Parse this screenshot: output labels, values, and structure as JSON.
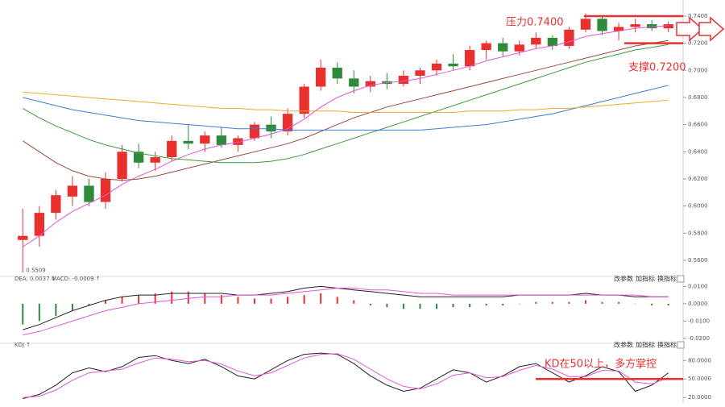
{
  "toolbar": [
    "改参数",
    "加指标",
    "换指标"
  ],
  "chart_data": [
    {
      "type": "candlestick",
      "open": [
        0.575,
        0.578,
        0.595,
        0.607,
        0.615,
        0.603,
        0.62,
        0.64,
        0.632,
        0.636,
        0.648,
        0.646,
        0.652,
        0.645,
        0.65,
        0.66,
        0.655,
        0.668,
        0.688,
        0.702,
        0.694,
        0.688,
        0.692,
        0.69,
        0.696,
        0.7,
        0.705,
        0.703,
        0.715,
        0.72,
        0.714,
        0.719,
        0.724,
        0.718,
        0.73,
        0.738,
        0.729,
        0.732,
        0.734,
        0.731
      ],
      "high": [
        0.598,
        0.6,
        0.612,
        0.622,
        0.62,
        0.625,
        0.645,
        0.646,
        0.64,
        0.652,
        0.66,
        0.655,
        0.658,
        0.652,
        0.662,
        0.666,
        0.672,
        0.69,
        0.708,
        0.706,
        0.7,
        0.696,
        0.698,
        0.7,
        0.702,
        0.708,
        0.712,
        0.718,
        0.722,
        0.724,
        0.722,
        0.728,
        0.726,
        0.732,
        0.742,
        0.74,
        0.735,
        0.738,
        0.737,
        0.736
      ],
      "low": [
        0.551,
        0.57,
        0.59,
        0.6,
        0.6,
        0.598,
        0.618,
        0.628,
        0.626,
        0.633,
        0.642,
        0.64,
        0.643,
        0.64,
        0.648,
        0.65,
        0.652,
        0.665,
        0.685,
        0.69,
        0.683,
        0.684,
        0.686,
        0.688,
        0.69,
        0.696,
        0.7,
        0.7,
        0.708,
        0.71,
        0.711,
        0.716,
        0.715,
        0.716,
        0.728,
        0.726,
        0.722,
        0.728,
        0.729,
        0.728
      ],
      "close": [
        0.578,
        0.595,
        0.608,
        0.615,
        0.603,
        0.62,
        0.64,
        0.632,
        0.636,
        0.648,
        0.646,
        0.652,
        0.645,
        0.65,
        0.66,
        0.655,
        0.668,
        0.688,
        0.702,
        0.694,
        0.688,
        0.692,
        0.69,
        0.696,
        0.7,
        0.705,
        0.703,
        0.715,
        0.72,
        0.714,
        0.719,
        0.724,
        0.718,
        0.73,
        0.738,
        0.729,
        0.732,
        0.734,
        0.731,
        0.734
      ],
      "up_color": "#e8312f",
      "down_color": "#2e8b3a",
      "lines": [
        {
          "color": "#e455d6",
          "values": [
            0.57,
            0.578,
            0.588,
            0.596,
            0.602,
            0.608,
            0.616,
            0.622,
            0.627,
            0.633,
            0.638,
            0.642,
            0.645,
            0.647,
            0.65,
            0.653,
            0.657,
            0.664,
            0.673,
            0.68,
            0.685,
            0.689,
            0.691,
            0.692,
            0.694,
            0.697,
            0.7,
            0.703,
            0.707,
            0.71,
            0.713,
            0.716,
            0.718,
            0.721,
            0.725,
            0.727,
            0.729,
            0.731,
            0.732,
            0.733
          ]
        },
        {
          "color": "#9b4a3c",
          "values": [
            0.648,
            0.64,
            0.632,
            0.626,
            0.622,
            0.62,
            0.619,
            0.62,
            0.622,
            0.625,
            0.628,
            0.631,
            0.634,
            0.637,
            0.64,
            0.643,
            0.646,
            0.65,
            0.655,
            0.66,
            0.665,
            0.669,
            0.673,
            0.676,
            0.679,
            0.682,
            0.685,
            0.688,
            0.691,
            0.694,
            0.697,
            0.7,
            0.703,
            0.706,
            0.709,
            0.712,
            0.715,
            0.718,
            0.72,
            0.722
          ]
        },
        {
          "color": "#3f9b3f",
          "values": [
            0.672,
            0.665,
            0.659,
            0.654,
            0.649,
            0.645,
            0.642,
            0.639,
            0.637,
            0.635,
            0.634,
            0.633,
            0.632,
            0.632,
            0.632,
            0.633,
            0.635,
            0.638,
            0.642,
            0.646,
            0.65,
            0.654,
            0.658,
            0.662,
            0.666,
            0.67,
            0.674,
            0.678,
            0.682,
            0.686,
            0.69,
            0.694,
            0.698,
            0.702,
            0.706,
            0.709,
            0.712,
            0.715,
            0.717,
            0.719
          ]
        },
        {
          "color": "#3a7fd0",
          "values": [
            0.68,
            0.677,
            0.674,
            0.671,
            0.669,
            0.667,
            0.665,
            0.663,
            0.662,
            0.661,
            0.66,
            0.659,
            0.658,
            0.657,
            0.657,
            0.657,
            0.656,
            0.656,
            0.656,
            0.656,
            0.656,
            0.656,
            0.656,
            0.656,
            0.656,
            0.657,
            0.658,
            0.659,
            0.66,
            0.662,
            0.664,
            0.666,
            0.668,
            0.671,
            0.674,
            0.677,
            0.68,
            0.683,
            0.686,
            0.689
          ]
        },
        {
          "color": "#f0a830",
          "values": [
            0.684,
            0.683,
            0.682,
            0.681,
            0.68,
            0.679,
            0.678,
            0.677,
            0.676,
            0.675,
            0.674,
            0.673,
            0.672,
            0.672,
            0.671,
            0.671,
            0.67,
            0.67,
            0.67,
            0.67,
            0.669,
            0.669,
            0.669,
            0.669,
            0.669,
            0.669,
            0.669,
            0.67,
            0.67,
            0.67,
            0.671,
            0.671,
            0.672,
            0.672,
            0.673,
            0.674,
            0.675,
            0.676,
            0.677,
            0.678
          ]
        }
      ],
      "low_marker": 0.5509,
      "ylim": [
        0.5505,
        0.7471
      ],
      "yticks": [
        {
          "value": 0.56,
          "label": "0.5600"
        },
        {
          "value": 0.58,
          "label": "0.5800"
        },
        {
          "value": 0.6,
          "label": "0.6000"
        },
        {
          "value": 0.62,
          "label": "0.6200"
        },
        {
          "value": 0.64,
          "label": "0.6400"
        },
        {
          "value": 0.66,
          "label": "0.6600"
        },
        {
          "value": 0.68,
          "label": "0.6800"
        },
        {
          "value": 0.7,
          "label": "0.7000"
        },
        {
          "value": 0.72,
          "label": "0.7200"
        },
        {
          "value": 0.74,
          "label": "0.7400"
        }
      ],
      "annotations": [
        {
          "text": "压力0.7400",
          "value": 0.74
        },
        {
          "text": "支撑0.7200",
          "value": 0.72
        }
      ]
    },
    {
      "type": "macd",
      "labels": [
        "DEA: 0.0037 ↓",
        "MACD: -0.0009 ↑"
      ],
      "histogram": [
        -0.012,
        -0.01,
        -0.007,
        -0.004,
        -0.001,
        0.002,
        0.004,
        0.005,
        0.006,
        0.007,
        0.007,
        0.006,
        0.005,
        0.004,
        0.003,
        0.003,
        0.004,
        0.005,
        0.006,
        0.004,
        0.002,
        -0.001,
        -0.002,
        -0.003,
        -0.003,
        -0.003,
        -0.002,
        -0.002,
        -0.001,
        -0.001,
        0.0,
        0.001,
        0.001,
        0.001,
        0.002,
        0.001,
        0.001,
        0.0,
        -0.001,
        -0.001
      ],
      "up_color": "#e8312f",
      "down_color": "#2e8b3a",
      "lines": [
        {
          "color": "#222222",
          "values": [
            -0.015,
            -0.012,
            -0.008,
            -0.004,
            -0.001,
            0.002,
            0.004,
            0.005,
            0.005,
            0.006,
            0.006,
            0.006,
            0.006,
            0.005,
            0.005,
            0.006,
            0.007,
            0.009,
            0.01,
            0.009,
            0.008,
            0.007,
            0.006,
            0.005,
            0.004,
            0.004,
            0.004,
            0.004,
            0.004,
            0.004,
            0.005,
            0.005,
            0.005,
            0.005,
            0.006,
            0.005,
            0.005,
            0.004,
            0.004,
            0.004
          ]
        },
        {
          "color": "#e455d6",
          "values": [
            -0.018,
            -0.016,
            -0.013,
            -0.01,
            -0.007,
            -0.004,
            -0.002,
            0.0,
            0.001,
            0.002,
            0.003,
            0.004,
            0.004,
            0.005,
            0.005,
            0.005,
            0.006,
            0.007,
            0.008,
            0.009,
            0.009,
            0.008,
            0.008,
            0.007,
            0.006,
            0.006,
            0.005,
            0.005,
            0.005,
            0.005,
            0.005,
            0.005,
            0.005,
            0.005,
            0.005,
            0.005,
            0.005,
            0.005,
            0.004,
            0.004
          ]
        }
      ],
      "ylim": [
        -0.021,
        0.0125
      ],
      "yticks": [
        {
          "value": 0.01,
          "label": "0.0100"
        },
        {
          "value": 0,
          "label": "0.0000"
        },
        {
          "value": -0.01,
          "label": "-0.0100"
        },
        {
          "value": -0.02,
          "label": "-0.0200"
        }
      ]
    },
    {
      "type": "line",
      "labels": [
        "KDJ ↑"
      ],
      "lines": [
        {
          "color": "#222222",
          "values": [
            18,
            25,
            40,
            60,
            68,
            62,
            70,
            85,
            88,
            80,
            75,
            82,
            70,
            55,
            50,
            65,
            80,
            90,
            92,
            90,
            75,
            55,
            40,
            30,
            35,
            50,
            65,
            60,
            45,
            55,
            70,
            75,
            60,
            45,
            55,
            70,
            62,
            30,
            40,
            60
          ]
        },
        {
          "color": "#e455d6",
          "values": [
            20,
            22,
            32,
            48,
            60,
            63,
            66,
            76,
            84,
            82,
            78,
            80,
            74,
            63,
            55,
            60,
            72,
            84,
            90,
            91,
            82,
            66,
            50,
            38,
            34,
            42,
            56,
            60,
            52,
            54,
            64,
            72,
            66,
            54,
            54,
            64,
            63,
            45,
            42,
            52
          ]
        }
      ],
      "ylim": [
        15,
        100
      ],
      "yticks": [
        {
          "value": 80,
          "label": "80.0000"
        },
        {
          "value": 50,
          "label": "50.0000"
        },
        {
          "value": 20,
          "label": "20.0000"
        }
      ],
      "annotations": [
        {
          "text": "KD在50以上，多方掌控",
          "value": 50
        }
      ]
    }
  ]
}
